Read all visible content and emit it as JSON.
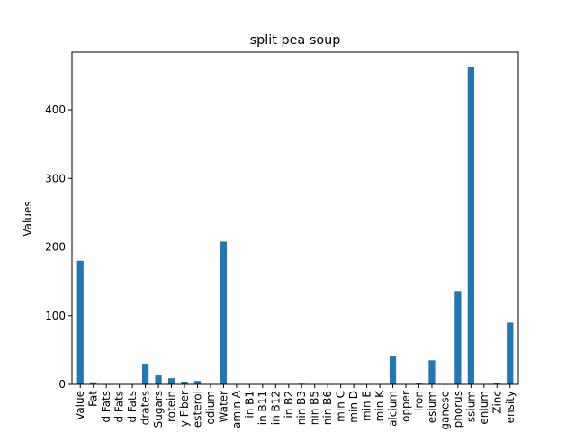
{
  "chart_data": {
    "type": "bar",
    "title": "split pea soup",
    "xlabel": "",
    "ylabel": "Values",
    "ylim": [
      0,
      484
    ],
    "yticks": [
      0,
      100,
      200,
      300,
      400
    ],
    "bar_color": "#1f77b4",
    "grid": false,
    "legend": "none",
    "categories": [
      "Value",
      "Fat",
      "d Fats",
      "d Fats",
      "d Fats",
      "drates",
      "Sugars",
      "rotein",
      "y Fiber",
      "esterol",
      "odium",
      "Water",
      "amin A",
      "in B1",
      "in B11",
      "in B12",
      "in B2",
      "nin B3",
      "nin B5",
      "nin B6",
      "min C",
      "min D",
      "min E",
      "min K",
      "alcium",
      "opper",
      "Iron",
      "esium",
      "ganese",
      "phorus",
      "ssium",
      "enium",
      "Zinc",
      "ensity"
    ],
    "values": [
      180,
      3,
      0.5,
      0.3,
      0.4,
      30,
      13,
      9,
      4,
      5,
      0.5,
      208,
      0.2,
      0.1,
      0.1,
      0.1,
      0.1,
      1,
      0.3,
      0.1,
      0.2,
      0.1,
      0.1,
      0.1,
      42,
      0.1,
      1.5,
      35,
      0.3,
      136,
      463,
      0.1,
      1.3,
      90
    ]
  }
}
